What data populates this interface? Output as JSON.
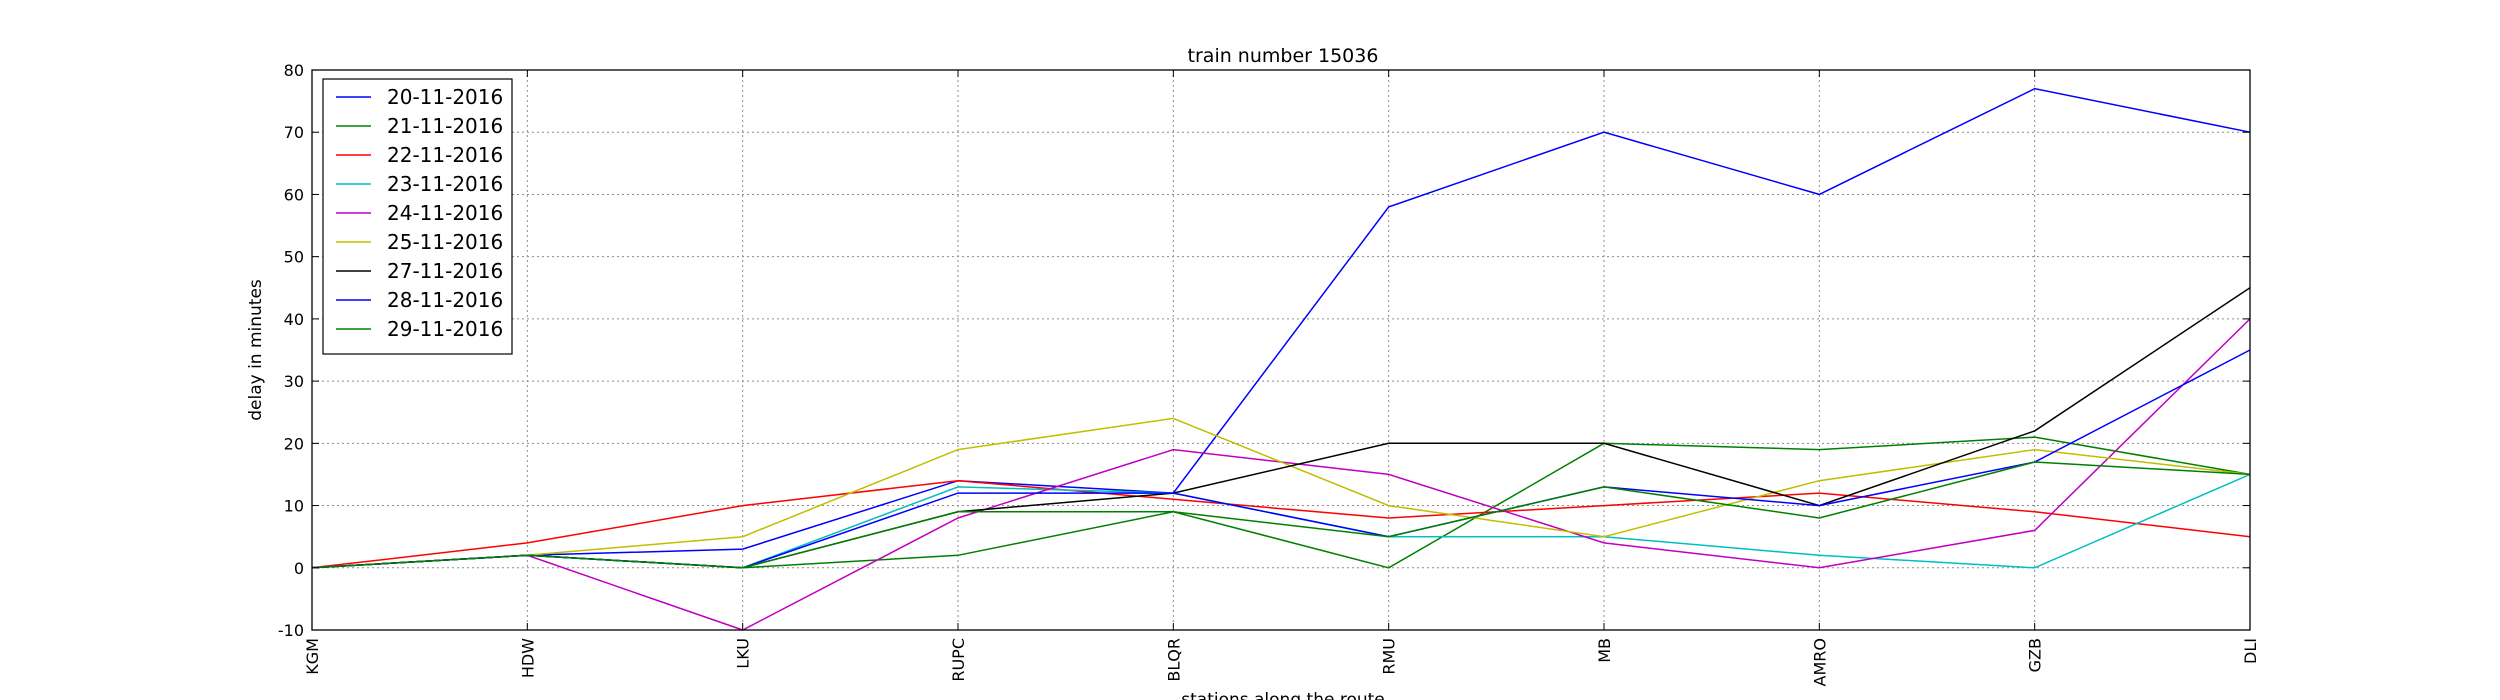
{
  "chart_data": {
    "type": "line",
    "title": "train number 15036",
    "xlabel": "stations along the route",
    "ylabel": "delay in minutes",
    "categories": [
      "KGM",
      "HDW",
      "LKU",
      "RUPC",
      "BLQR",
      "RMU",
      "MB",
      "AMRO",
      "GZB",
      "DLI"
    ],
    "ylim": [
      -10,
      80
    ],
    "yticks": [
      -10,
      0,
      10,
      20,
      30,
      40,
      50,
      60,
      70,
      80
    ],
    "grid": true,
    "legend_position": "top-left",
    "series": [
      {
        "name": "20-11-2016",
        "color": "#0000ff",
        "values": [
          0,
          2,
          3,
          14,
          12,
          58,
          70,
          60,
          77,
          70
        ]
      },
      {
        "name": "21-11-2016",
        "color": "#008000",
        "values": [
          0,
          2,
          0,
          2,
          9,
          0,
          20,
          19,
          21,
          15
        ]
      },
      {
        "name": "22-11-2016",
        "color": "#ff0000",
        "values": [
          0,
          4,
          10,
          14,
          11,
          8,
          10,
          12,
          9,
          5
        ]
      },
      {
        "name": "23-11-2016",
        "color": "#00bfbf",
        "values": [
          0,
          2,
          0,
          13,
          12,
          5,
          5,
          2,
          0,
          15
        ]
      },
      {
        "name": "24-11-2016",
        "color": "#bf00bf",
        "values": [
          0,
          2,
          -10,
          8,
          19,
          15,
          4,
          0,
          6,
          40
        ]
      },
      {
        "name": "25-11-2016",
        "color": "#bfbf00",
        "values": [
          0,
          2,
          5,
          19,
          24,
          10,
          5,
          14,
          19,
          15
        ]
      },
      {
        "name": "27-11-2016",
        "color": "#000000",
        "values": [
          0,
          2,
          0,
          9,
          12,
          20,
          20,
          10,
          22,
          45
        ]
      },
      {
        "name": "28-11-2016",
        "color": "#0000ff",
        "values": [
          0,
          2,
          0,
          12,
          12,
          5,
          13,
          10,
          17,
          35
        ]
      },
      {
        "name": "29-11-2016",
        "color": "#008000",
        "values": [
          0,
          2,
          0,
          9,
          9,
          5,
          13,
          8,
          17,
          15
        ]
      }
    ]
  }
}
